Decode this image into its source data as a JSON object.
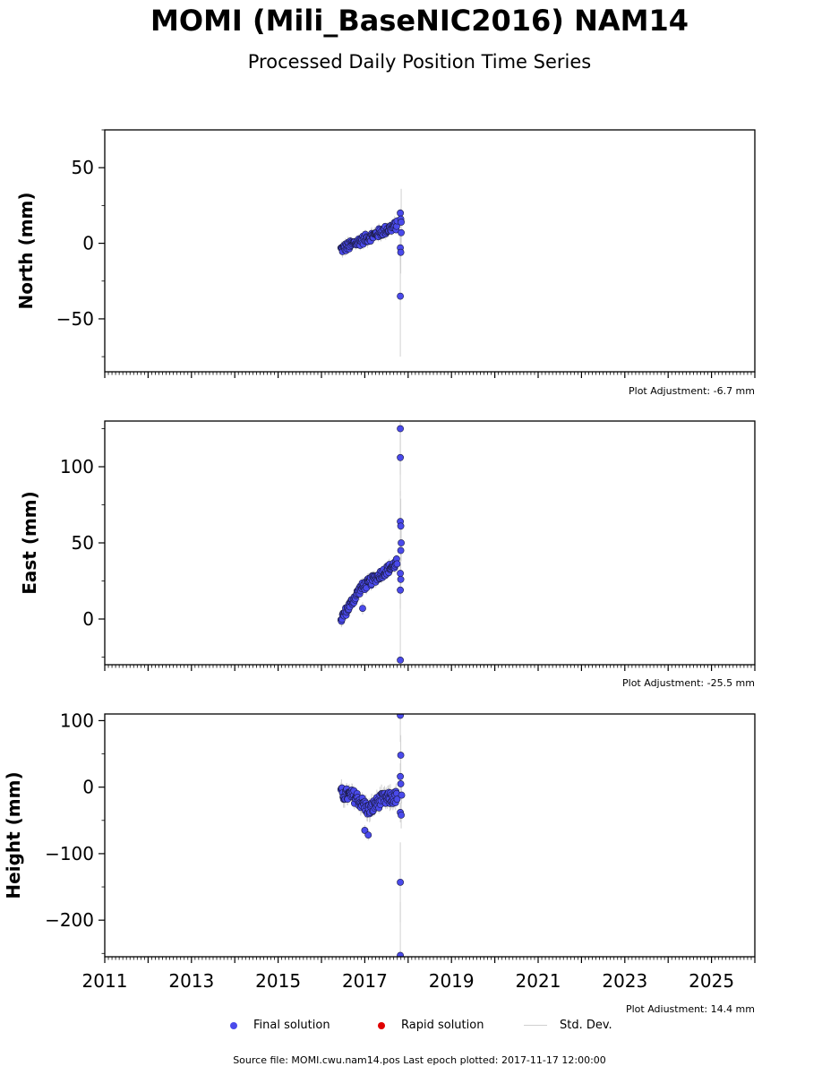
{
  "page": {
    "title": "MOMI (Mili_BaseNIC2016) NAM14",
    "subtitle": "Processed Daily Position Time Series",
    "footer": "Source file: MOMI.cwu.nam14.pos  Last epoch plotted: 2017-11-17 12:00:00"
  },
  "legend": {
    "final_label": "Final solution",
    "rapid_label": "Rapid solution",
    "std_label": "Std. Dev.",
    "final_color": "#4a4aeb",
    "rapid_color": "#e00000",
    "std_color": "#d0d0d0"
  },
  "chart_data": [
    {
      "type": "scatter",
      "ylabel": "North (mm)",
      "xlim": [
        2011.0,
        2026.0
      ],
      "ylim": [
        -85,
        75
      ],
      "yticks": [
        50,
        0,
        -50
      ],
      "ytick_labels": [
        "50",
        "0",
        "−50"
      ],
      "adjustment": "Plot Adjustment: -6.7 mm",
      "trend": [
        [
          2016.45,
          -4
        ],
        [
          2017.75,
          12
        ]
      ],
      "noise": 3,
      "outliers": [
        [
          2017.82,
          20,
          3
        ],
        [
          2017.83,
          16,
          4
        ],
        [
          2017.84,
          7,
          6
        ],
        [
          2017.82,
          -3,
          10
        ],
        [
          2017.83,
          -6,
          14
        ],
        [
          2017.82,
          -35,
          40
        ],
        [
          2017.84,
          14,
          22
        ]
      ]
    },
    {
      "type": "scatter",
      "ylabel": "East (mm)",
      "xlim": [
        2011.0,
        2026.0
      ],
      "ylim": [
        -30,
        130
      ],
      "yticks": [
        100,
        50,
        0
      ],
      "ytick_labels": [
        "100",
        "50",
        "0"
      ],
      "adjustment": "Plot Adjustment: -25.5 mm",
      "trend": [
        [
          2016.45,
          0
        ],
        [
          2016.9,
          20
        ],
        [
          2017.75,
          37
        ]
      ],
      "noise": 3,
      "outliers": [
        [
          2016.95,
          7,
          4
        ],
        [
          2017.82,
          125,
          30
        ],
        [
          2017.82,
          106,
          25
        ],
        [
          2017.82,
          64,
          20
        ],
        [
          2017.83,
          61,
          18
        ],
        [
          2017.84,
          50,
          12
        ],
        [
          2017.83,
          45,
          8
        ],
        [
          2017.82,
          30,
          6
        ],
        [
          2017.83,
          26,
          10
        ],
        [
          2017.82,
          19,
          12
        ],
        [
          2017.82,
          -27,
          40
        ]
      ]
    },
    {
      "type": "scatter",
      "ylabel": "Height (mm)",
      "xlim": [
        2011.0,
        2026.0
      ],
      "ylim": [
        -255,
        110
      ],
      "yticks": [
        100,
        0,
        -100,
        -200
      ],
      "ytick_labels": [
        "100",
        "0",
        "−100",
        "−200"
      ],
      "xticks": [
        2011,
        2013,
        2015,
        2017,
        2019,
        2021,
        2023,
        2025
      ],
      "xtick_labels": [
        "2011",
        "2013",
        "2015",
        "2017",
        "2019",
        "2021",
        "2023",
        "2025"
      ],
      "adjustment": "Plot Adjustment: 14.4 mm",
      "trend": [
        [
          2016.45,
          -10
        ],
        [
          2016.8,
          -15
        ],
        [
          2017.1,
          -35
        ],
        [
          2017.35,
          -20
        ],
        [
          2017.75,
          -15
        ]
      ],
      "noise": 10,
      "outliers": [
        [
          2017.0,
          -65,
          8
        ],
        [
          2017.08,
          -72,
          8
        ],
        [
          2017.82,
          108,
          40
        ],
        [
          2017.83,
          48,
          30
        ],
        [
          2017.82,
          16,
          20
        ],
        [
          2017.83,
          5,
          15
        ],
        [
          2017.85,
          -12,
          12
        ],
        [
          2017.82,
          -38,
          15
        ],
        [
          2017.84,
          -42,
          20
        ],
        [
          2017.82,
          -143,
          60
        ],
        [
          2017.82,
          -253,
          80
        ]
      ]
    }
  ]
}
